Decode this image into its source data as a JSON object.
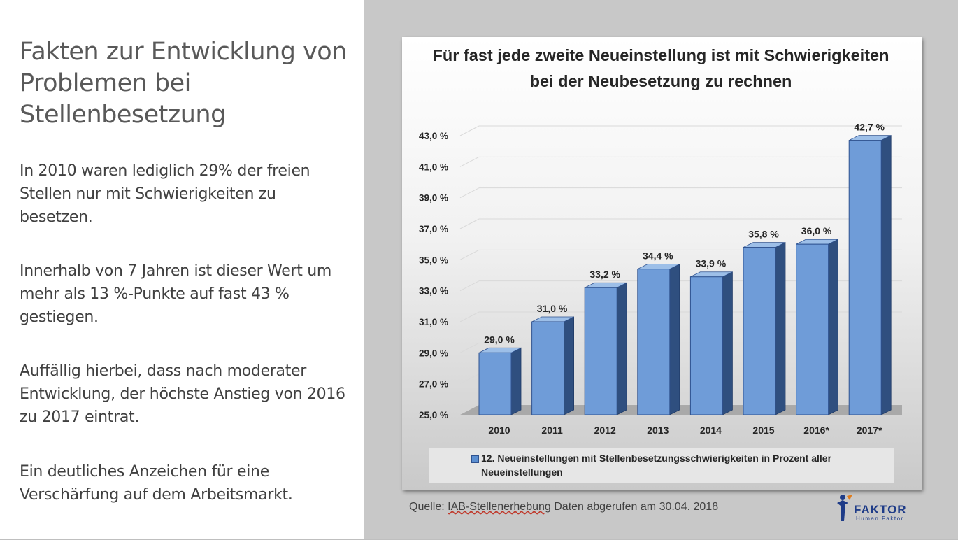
{
  "slide": {
    "title": "Fakten zur Entwicklung von Problemen bei Stellenbesetzung",
    "paragraphs": [
      "In 2010 waren lediglich 29% der freien Stellen nur mit Schwierigkeiten zu besetzen.",
      "Innerhalb von 7 Jahren ist dieser Wert um mehr als 13 %-Punkte auf fast 43 % gestiegen.",
      "Auffällig hierbei, dass nach moderater Entwicklung, der höchste Anstieg von 2016 zu 2017 eintrat.",
      "Ein deutliches Anzeichen für eine Verschärfung auf dem Arbeitsmarkt."
    ]
  },
  "source": {
    "prefix": "Quelle: ",
    "link": "IAB-Stellenerhebung",
    "suffix": " Daten abgerufen am 30.04. 2018"
  },
  "logo": {
    "name": "FAKTOR",
    "tagline": "Human Faktor"
  },
  "colors": {
    "bar_front": "#6f9cd8",
    "bar_side": "#2f4f7f",
    "bar_top": "#9dbfe8",
    "panel_gray": "#c8c8c8",
    "logo_blue": "#1f3c88",
    "logo_orange": "#e07b1a"
  },
  "chart_data": {
    "type": "bar",
    "title": "Für fast jede zweite Neueinstellung ist mit Schwierigkeiten bei der Neubesetzung zu rechnen",
    "categories": [
      "2010",
      "2011",
      "2012",
      "2013",
      "2014",
      "2015",
      "2016*",
      "2017*"
    ],
    "series": [
      {
        "name": "12. Neueinstellungen mit Stellenbesetzungsschwierigkeiten in Prozent aller Neueinstellungen",
        "values": [
          29.0,
          31.0,
          33.2,
          34.4,
          33.9,
          35.8,
          36.0,
          42.7
        ],
        "data_labels": [
          "29,0 %",
          "31,0 %",
          "33,2 %",
          "34,4 %",
          "33,9 %",
          "35,8 %",
          "36,0 %",
          "42,7 %"
        ]
      }
    ],
    "y_ticks": [
      "25,0 %",
      "27,0 %",
      "29,0 %",
      "31,0 %",
      "33,0 %",
      "35,0 %",
      "37,0 %",
      "39,0 %",
      "41,0 %",
      "43,0 %"
    ],
    "ylim": [
      25,
      43
    ],
    "xlabel": "",
    "ylabel": "",
    "grid": true,
    "legend_position": "bottom",
    "style": "3d-column"
  }
}
